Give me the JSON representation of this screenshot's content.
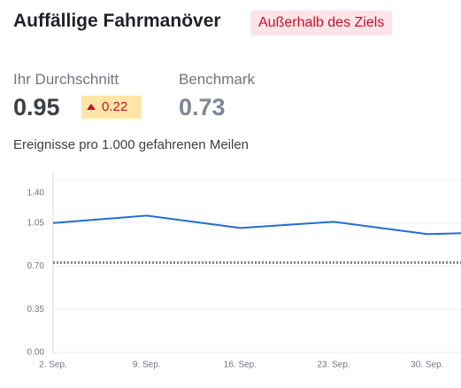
{
  "header": {
    "title": "Auffällige Fahrmanöver",
    "status": "Außerhalb des Ziels"
  },
  "kpis": {
    "average_label": "Ihr Durchschnitt",
    "average_value": "0.95",
    "delta": "0.22",
    "benchmark_label": "Benchmark",
    "benchmark_value": 0.73
  },
  "unit": "Ereignisse pro 1.000 gefahrenen Meilen",
  "chart_data": {
    "type": "line",
    "categories": [
      "2. Sep.",
      "9. Sep.",
      "16. Sep.",
      "23. Sep.",
      "30. Sep.",
      null
    ],
    "series": [
      {
        "name": "Ihr Durchschnitt",
        "color": "#1f6fd0",
        "values": [
          1.05,
          1.11,
          1.01,
          1.06,
          0.96,
          0.98
        ]
      }
    ],
    "benchmark": 0.73,
    "benchmark_color": "#7d8794",
    "ylim": [
      0,
      1.4
    ],
    "yticks": [
      {
        "value": 0,
        "label": "0.00"
      },
      {
        "value": 0.35,
        "label": "0.35"
      },
      {
        "value": 0.7,
        "label": "0.70"
      },
      {
        "value": 1.05,
        "label": "1.05"
      },
      {
        "value": 1.4,
        "label": "1.40"
      }
    ],
    "grid": true
  }
}
